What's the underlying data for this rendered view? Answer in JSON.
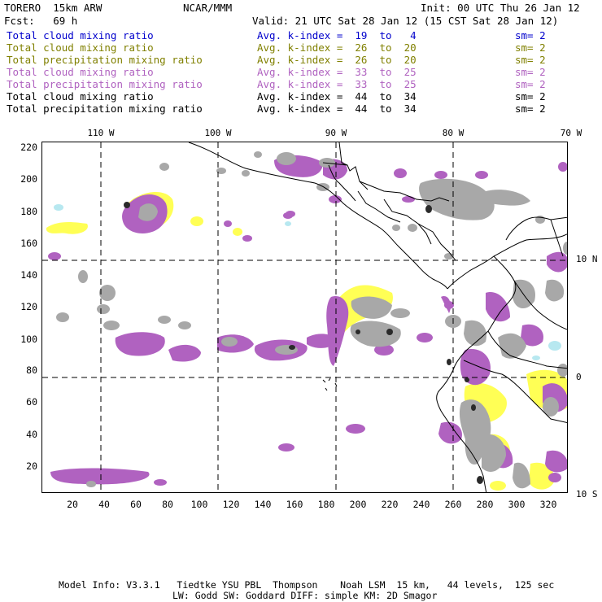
{
  "header": {
    "model": "TORERO  15km ARW",
    "center": "NCAR/MMM",
    "init": "Init: 00 UTC Thu 26 Jan 12",
    "fcst": "Fcst:   69 h",
    "valid": "Valid: 21 UTC Sat 28 Jan 12 (15 CST Sat 28 Jan 12)"
  },
  "fields": [
    {
      "name": "Total cloud mixing ratio",
      "stat": "Avg. k-index =  19  to   4",
      "sm": "sm= 2",
      "color": "#0000cc"
    },
    {
      "name": "Total cloud mixing ratio",
      "stat": "Avg. k-index =  26  to  20",
      "sm": "sm= 2",
      "color": "#808000"
    },
    {
      "name": "Total precipitation mixing ratio",
      "stat": "Avg. k-index =  26  to  20",
      "sm": "sm= 2",
      "color": "#808000"
    },
    {
      "name": "Total cloud mixing ratio",
      "stat": "Avg. k-index =  33  to  25",
      "sm": "sm= 2",
      "color": "#b062c0"
    },
    {
      "name": "Total precipitation mixing ratio",
      "stat": "Avg. k-index =  33  to  25",
      "sm": "sm= 2",
      "color": "#b062c0"
    },
    {
      "name": "Total cloud mixing ratio",
      "stat": "Avg. k-index =  44  to  34",
      "sm": "sm= 2",
      "color": "#000000"
    },
    {
      "name": "Total precipitation mixing ratio",
      "stat": "Avg. k-index =  44  to  34",
      "sm": "sm= 2",
      "color": "#000000"
    }
  ],
  "map": {
    "lon_labels": [
      "110 W",
      "100 W",
      "90 W",
      "80 W",
      "70 W"
    ],
    "lat_labels": [
      "10 N",
      "0",
      "10 S"
    ],
    "y_ticks": [
      "220",
      "200",
      "180",
      "160",
      "140",
      "120",
      "100",
      "80",
      "60",
      "40",
      "20"
    ],
    "x_ticks": [
      "20",
      "40",
      "60",
      "80",
      "100",
      "120",
      "140",
      "160",
      "180",
      "200",
      "220",
      "240",
      "260",
      "280",
      "300",
      "320"
    ],
    "colors": {
      "cloud_light": "#b7e8f0",
      "yellow": "#ffff55",
      "purple": "#b062c0",
      "gray": "#a8a8a8",
      "dark": "#2a2a2a",
      "coast": "#000000"
    }
  },
  "footer": {
    "line1": "Model Info: V3.3.1   Tiedtke YSU PBL  Thompson    Noah LSM  15 km,   44 levels,  125 sec",
    "line2": "LW: Godd SW: Goddard DIFF: simple KM: 2D Smagor"
  }
}
